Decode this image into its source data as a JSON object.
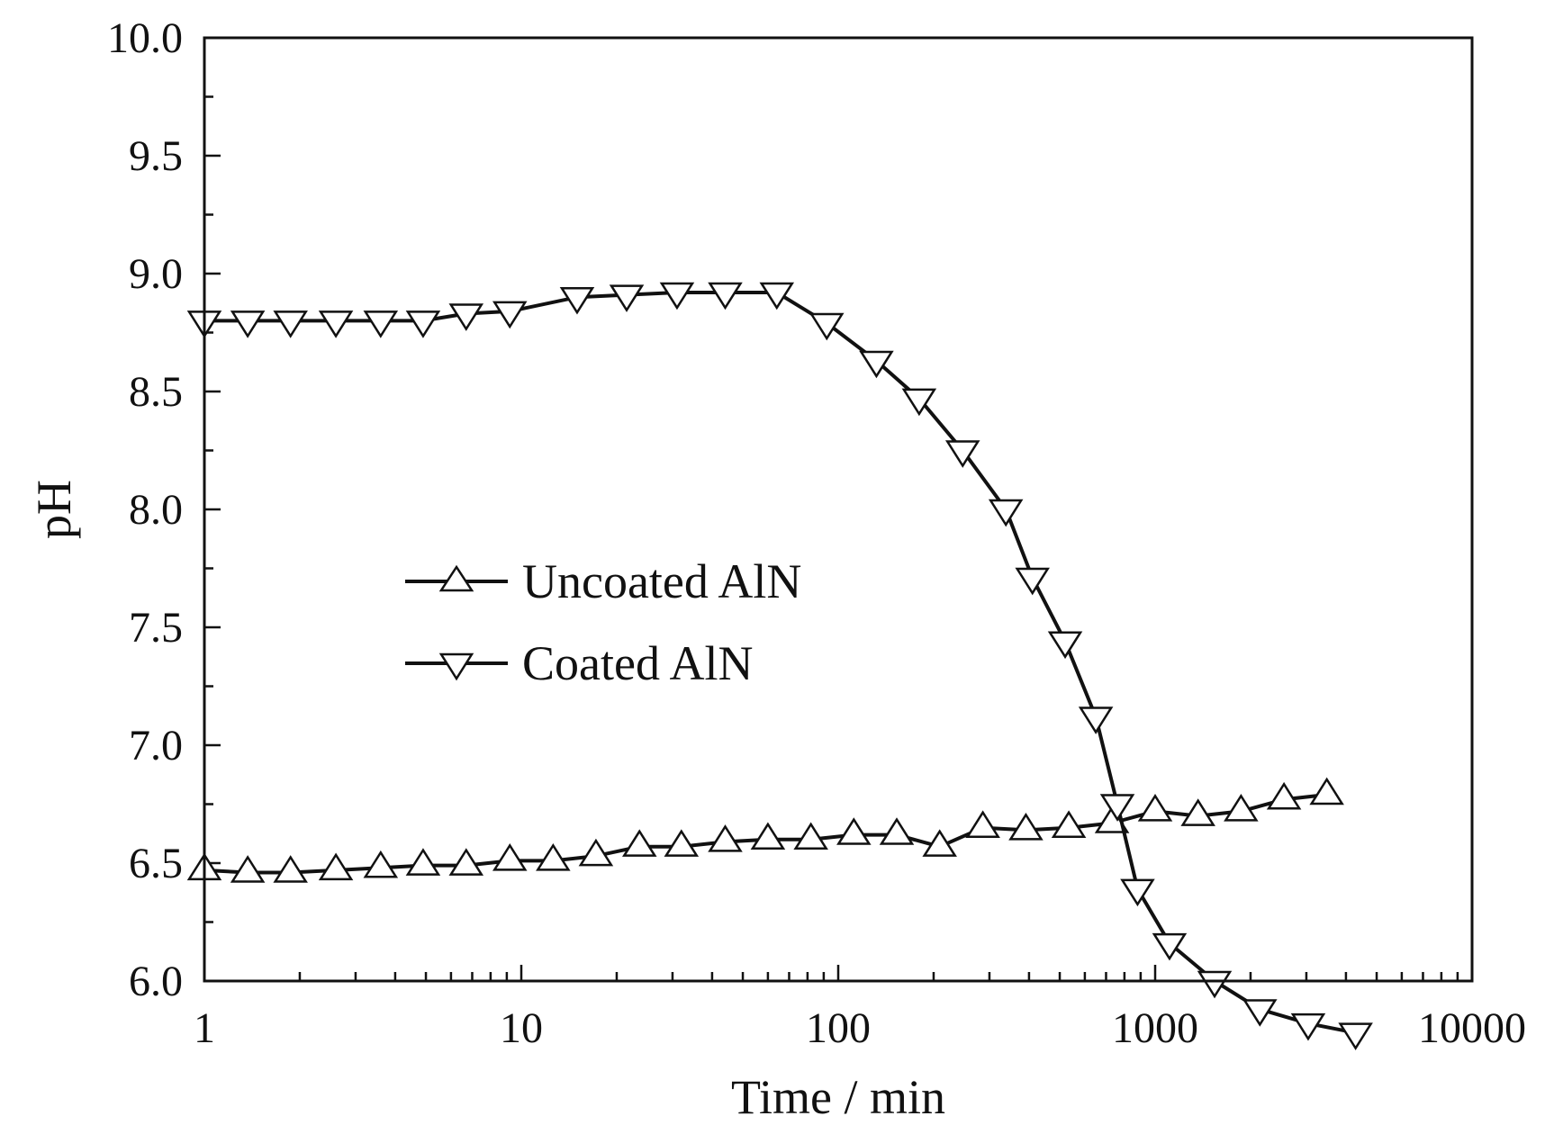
{
  "chart_data": {
    "type": "line",
    "xlabel": "Time / min",
    "ylabel": "pH",
    "xscale": "log",
    "xlim": [
      1,
      10000
    ],
    "ylim": [
      6.0,
      10.0
    ],
    "xticks": [
      "1",
      "10",
      "100",
      "1000",
      "10000"
    ],
    "yticks": [
      "6.0",
      "6.5",
      "7.0",
      "7.5",
      "8.0",
      "8.5",
      "9.0",
      "9.5",
      "10.0"
    ],
    "grid": false,
    "legend_position": "center-left",
    "series": [
      {
        "name": "Uncoated AlN",
        "marker": "triangle-up",
        "color": "#111111",
        "x": [
          1,
          1.37,
          1.87,
          2.6,
          3.6,
          4.9,
          6.7,
          9.2,
          12.6,
          17.2,
          23.6,
          32,
          44,
          60,
          82,
          112,
          153,
          209,
          286,
          391,
          534,
          731,
          1000,
          1366,
          1866,
          2550,
          3480
        ],
        "y": [
          6.47,
          6.46,
          6.46,
          6.47,
          6.48,
          6.49,
          6.49,
          6.51,
          6.51,
          6.53,
          6.57,
          6.57,
          6.59,
          6.6,
          6.6,
          6.62,
          6.62,
          6.57,
          6.65,
          6.64,
          6.65,
          6.67,
          6.72,
          6.7,
          6.72,
          6.77,
          6.79
        ]
      },
      {
        "name": "Coated AlN",
        "marker": "triangle-down",
        "color": "#111111",
        "x": [
          1,
          1.37,
          1.87,
          2.6,
          3.6,
          4.9,
          6.7,
          9.2,
          15,
          21.5,
          31,
          44,
          64,
          92,
          132,
          180,
          247,
          338,
          410,
          520,
          650,
          760,
          880,
          1110,
          1540,
          2140,
          3040,
          4290
        ],
        "y": [
          8.8,
          8.8,
          8.8,
          8.8,
          8.8,
          8.8,
          8.83,
          8.84,
          8.9,
          8.91,
          8.92,
          8.92,
          8.92,
          8.79,
          8.63,
          8.47,
          8.25,
          8.0,
          7.71,
          7.44,
          7.12,
          6.75,
          6.39,
          6.16,
          6.0,
          5.88,
          5.82,
          5.78
        ]
      }
    ]
  }
}
